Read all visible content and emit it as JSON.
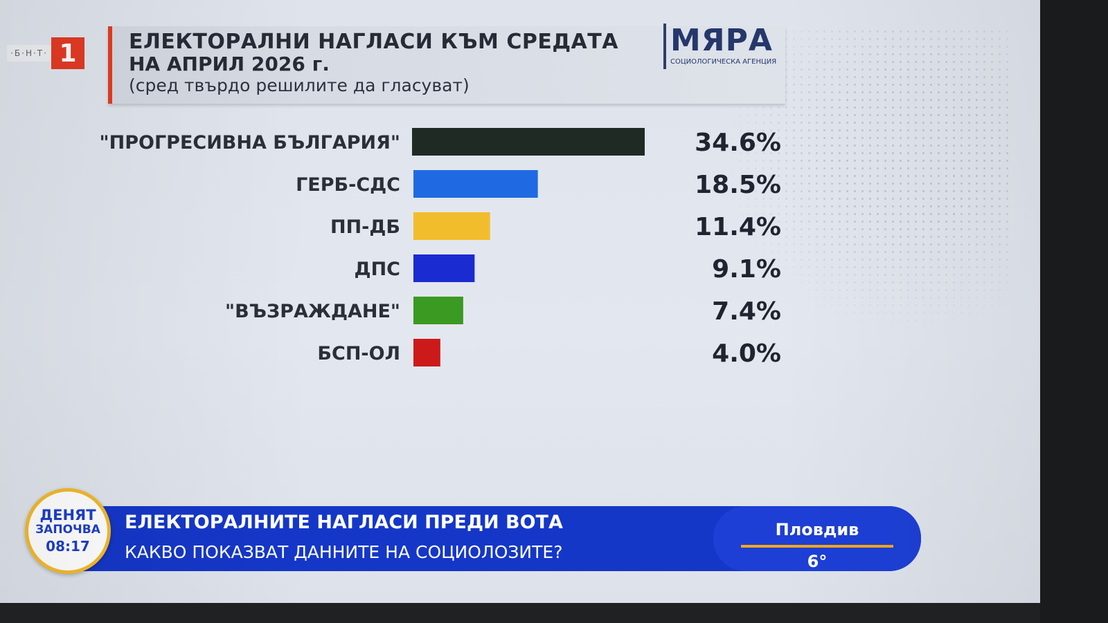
{
  "channel": {
    "logo_small": "·Б·Н·Т·",
    "logo_number": "1"
  },
  "header": {
    "title_line1": "ЕЛЕКТОРАЛНИ НАГЛАСИ КЪМ СРЕДАТА",
    "title_line2": "НА АПРИЛ 2026 г.",
    "subtitle": "(сред твърдо решилите да гласуват)"
  },
  "agency": {
    "name": "МЯРА",
    "subtitle": "СОЦИОЛОГИЧЕСКА АГЕНЦИЯ"
  },
  "chart_data": {
    "type": "bar",
    "orientation": "horizontal",
    "categories": [
      "\"ПРОГРЕСИВНА БЪЛГАРИЯ\"",
      "ГЕРБ-СДС",
      "ПП-ДБ",
      "ДПС",
      "\"ВЪЗРАЖДАНЕ\"",
      "БСП-ОЛ"
    ],
    "values": [
      34.6,
      18.5,
      11.4,
      9.1,
      7.4,
      4.0
    ],
    "value_labels": [
      "34.6%",
      "18.5%",
      "11.4%",
      "9.1%",
      "7.4%",
      "4.0%"
    ],
    "colors": [
      "#1f2a24",
      "#1f6ae3",
      "#f2bd2c",
      "#1a2bd1",
      "#3a9a22",
      "#cc1a1a"
    ],
    "unit": "%",
    "xlim": [
      0,
      34.6
    ],
    "grid": false
  },
  "ticker": {
    "headline": "ЕЛЕКТОРАЛНИТЕ НАГЛАСИ ПРЕДИ ВОТА",
    "subline": "КАКВО ПОКАЗВАТ ДАННИТЕ НА СОЦИОЛОЗИТЕ?",
    "city": "Пловдив",
    "temperature": "6°"
  },
  "show_badge": {
    "line1": "ДЕНЯТ",
    "line2": "ЗАПОЧВА",
    "time": "08:17"
  }
}
